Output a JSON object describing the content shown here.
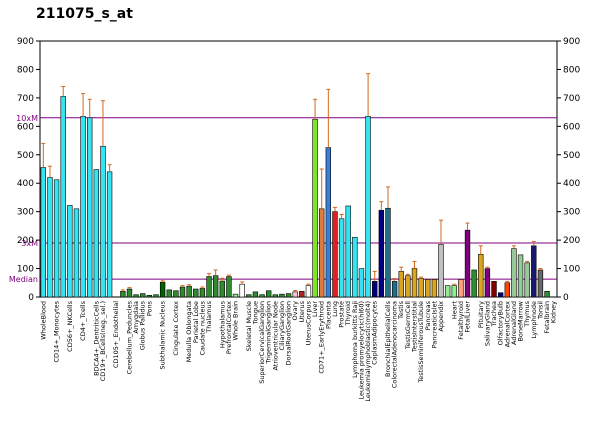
{
  "chart_title": "211075_s_at",
  "colors": {
    "reference_line": "#800080",
    "error_bar": "#d2691e",
    "bar_outline": "#000000"
  },
  "chart_data": {
    "type": "bar",
    "title": "211075_s_at",
    "xlabel": "",
    "ylabel": "",
    "ylim": [
      0,
      900
    ],
    "yticks": [
      0,
      100,
      200,
      300,
      400,
      500,
      600,
      700,
      800,
      900
    ],
    "grid": false,
    "reference_lines": [
      {
        "label": "10xM",
        "value": 630
      },
      {
        "label": "3xM",
        "value": 190
      },
      {
        "label": "Median",
        "value": 63
      }
    ],
    "bars": [
      {
        "label": "WholeBlood",
        "value": 455,
        "err": 85,
        "color": "#33e5f2"
      },
      {
        "label": "",
        "value": 420,
        "err": 40,
        "color": "#33e5f2"
      },
      {
        "label": "CD14+_Monocytes",
        "value": 412,
        "err": 0,
        "color": "#33e5f2"
      },
      {
        "label": "",
        "value": 705,
        "err": 35,
        "color": "#33e5f2"
      },
      {
        "label": "CD56+_NKCells",
        "value": 322,
        "err": 0,
        "color": "#33e5f2"
      },
      {
        "label": "",
        "value": 310,
        "err": 0,
        "color": "#33e5f2"
      },
      {
        "label": "CD4+_Tcells",
        "value": 635,
        "err": 80,
        "color": "#33e5f2"
      },
      {
        "label": "",
        "value": 630,
        "err": 65,
        "color": "#33e5f2"
      },
      {
        "label": "BDCA4+_DentriticCells",
        "value": 448,
        "err": 0,
        "color": "#33e5f2"
      },
      {
        "label": "CD19+_BCells(neg._sel.)",
        "value": 530,
        "err": 160,
        "color": "#33e5f2"
      },
      {
        "label": "",
        "value": 440,
        "err": 25,
        "color": "#33e5f2"
      },
      {
        "label": "CD105+_Endothelial",
        "value": 0,
        "err": 0,
        "color": "#33e5f2"
      },
      {
        "label": "",
        "value": 20,
        "err": 5,
        "color": "#2e8b2e"
      },
      {
        "label": "Cerebellum_Peduncles",
        "value": 28,
        "err": 5,
        "color": "#2e8b2e"
      },
      {
        "label": "Amygdala",
        "value": 8,
        "err": 0,
        "color": "#2e8b2e"
      },
      {
        "label": "Globus Pallidus",
        "value": 12,
        "err": 0,
        "color": "#2e8b2e"
      },
      {
        "label": "Pons",
        "value": 6,
        "err": 0,
        "color": "#2e8b2e"
      },
      {
        "label": "",
        "value": 8,
        "err": 0,
        "color": "#2e8b2e"
      },
      {
        "label": "Subthalamic Nucleus",
        "value": 52,
        "err": 5,
        "color": "#006400"
      },
      {
        "label": "",
        "value": 25,
        "err": 0,
        "color": "#2e8b2e"
      },
      {
        "label": "Cingulate Cortex",
        "value": 22,
        "err": 0,
        "color": "#2e8b2e"
      },
      {
        "label": "",
        "value": 35,
        "err": 5,
        "color": "#2e8b2e"
      },
      {
        "label": "Medulla Oblongata",
        "value": 38,
        "err": 5,
        "color": "#2e8b2e"
      },
      {
        "label": "Parietal Lobe",
        "value": 28,
        "err": 0,
        "color": "#2e8b2e"
      },
      {
        "label": "Caudate nucleus",
        "value": 30,
        "err": 5,
        "color": "#2e8b2e"
      },
      {
        "label": "Thalamus",
        "value": 72,
        "err": 10,
        "color": "#2e8b2e"
      },
      {
        "label": "",
        "value": 75,
        "err": 20,
        "color": "#2e8b2e"
      },
      {
        "label": "Hypothalamus",
        "value": 56,
        "err": 10,
        "color": "#2e8b2e"
      },
      {
        "label": "PrefrontalCortex",
        "value": 72,
        "err": 5,
        "color": "#2e8b2e"
      },
      {
        "label": "Whole Brain",
        "value": 10,
        "err": 0,
        "color": "#90ee90"
      },
      {
        "label": "",
        "value": 45,
        "err": 8,
        "color": "#ffffff"
      },
      {
        "label": "Skeletal Muscle",
        "value": 8,
        "err": 0,
        "color": "#2e8b2e"
      },
      {
        "label": "Tongue",
        "value": 18,
        "err": 0,
        "color": "#2e8b2e"
      },
      {
        "label": "SuperiorCervicalGanglion",
        "value": 8,
        "err": 0,
        "color": "#2e8b2e"
      },
      {
        "label": "TrigeminalGanglion",
        "value": 22,
        "err": 0,
        "color": "#2e8b2e"
      },
      {
        "label": "Atrioventricular Node",
        "value": 8,
        "err": 0,
        "color": "#2e8b2e"
      },
      {
        "label": "CiliaryGanglion",
        "value": 10,
        "err": 0,
        "color": "#2e8b2e"
      },
      {
        "label": "DorsalRootGanglion",
        "value": 12,
        "err": 0,
        "color": "#2e8b2e"
      },
      {
        "label": "Ovary",
        "value": 18,
        "err": 5,
        "color": "#ffc0cb"
      },
      {
        "label": "Uterus",
        "value": 20,
        "err": 0,
        "color": "#b22222"
      },
      {
        "label": "UterusCorpus",
        "value": 40,
        "err": 5,
        "color": "#ffffff"
      },
      {
        "label": "Liver",
        "value": 625,
        "err": 70,
        "color": "#7ee61e"
      },
      {
        "label": "CD71+_EarlyErythroid",
        "value": 310,
        "err": 140,
        "color": "#e07b39"
      },
      {
        "label": "Placenta",
        "value": 525,
        "err": 205,
        "color": "#3a7fd5"
      },
      {
        "label": "Lung",
        "value": 300,
        "err": 15,
        "color": "#e02020"
      },
      {
        "label": "Prostate",
        "value": 275,
        "err": 15,
        "color": "#33e5f2"
      },
      {
        "label": "Thyroid",
        "value": 320,
        "err": 0,
        "color": "#33e5f2"
      },
      {
        "label": "Lymphoma burkitts Raji",
        "value": 210,
        "err": 0,
        "color": "#33e5f2"
      },
      {
        "label": "Leukemia promyelocytic(hl60)",
        "value": 100,
        "err": 0,
        "color": "#33e5f2"
      },
      {
        "label": "Leukemialymphoblastic(molt4)",
        "value": 635,
        "err": 150,
        "color": "#33e5f2"
      },
      {
        "label": "CaplasmAdipocytes",
        "value": 55,
        "err": 35,
        "color": "#000080"
      },
      {
        "label": "",
        "value": 305,
        "err": 30,
        "color": "#000080"
      },
      {
        "label": "BronchialEpithelialCells",
        "value": 312,
        "err": 75,
        "color": "#1e6f8a"
      },
      {
        "label": "ColorectalAdenocarcinoma",
        "value": 55,
        "err": 10,
        "color": "#1e6f8a"
      },
      {
        "label": "Testis",
        "value": 90,
        "err": 15,
        "color": "#daa520"
      },
      {
        "label": "TestisGermCell",
        "value": 75,
        "err": 5,
        "color": "#daa520"
      },
      {
        "label": "TestisInterstitial",
        "value": 100,
        "err": 25,
        "color": "#daa520"
      },
      {
        "label": "TestisSeminiferousTubule",
        "value": 65,
        "err": 5,
        "color": "#daa520"
      },
      {
        "label": "Pancreas",
        "value": 62,
        "err": 0,
        "color": "#daa520"
      },
      {
        "label": "PancreaticIslet",
        "value": 62,
        "err": 0,
        "color": "#daa520"
      },
      {
        "label": "Appendix",
        "value": 185,
        "err": 85,
        "color": "#c0c0c0"
      },
      {
        "label": "",
        "value": 40,
        "err": 0,
        "color": "#90ee90"
      },
      {
        "label": "Heart",
        "value": 40,
        "err": 5,
        "color": "#90ee90"
      },
      {
        "label": "Fetalthyroid",
        "value": 62,
        "err": 0,
        "color": "#ffa07a"
      },
      {
        "label": "FetalLiver",
        "value": 235,
        "err": 25,
        "color": "#800080"
      },
      {
        "label": "",
        "value": 95,
        "err": 0,
        "color": "#2e8b2e"
      },
      {
        "label": "Pituitary",
        "value": 150,
        "err": 30,
        "color": "#daa520"
      },
      {
        "label": "SalivaryGland",
        "value": 100,
        "err": 5,
        "color": "#800080"
      },
      {
        "label": "Trachea",
        "value": 55,
        "err": 0,
        "color": "#800000"
      },
      {
        "label": "OlfactoryBulb",
        "value": 15,
        "err": 0,
        "color": "#000080"
      },
      {
        "label": "AdrenalCortex",
        "value": 50,
        "err": 5,
        "color": "#ff4500"
      },
      {
        "label": "AdrenalGland",
        "value": 170,
        "err": 10,
        "color": "#98c898"
      },
      {
        "label": "BoneMarrow",
        "value": 148,
        "err": 0,
        "color": "#98c898"
      },
      {
        "label": "Thymus",
        "value": 120,
        "err": 5,
        "color": "#98c898"
      },
      {
        "label": "Lymphnode",
        "value": 180,
        "err": 15,
        "color": "#191970"
      },
      {
        "label": "Tonsil",
        "value": 95,
        "err": 5,
        "color": "#696969"
      },
      {
        "label": "Fetalbrain",
        "value": 20,
        "err": 0,
        "color": "#2e8b2e"
      },
      {
        "label": "Kidney",
        "value": 0,
        "err": 0,
        "color": "#2e8b2e"
      }
    ]
  }
}
